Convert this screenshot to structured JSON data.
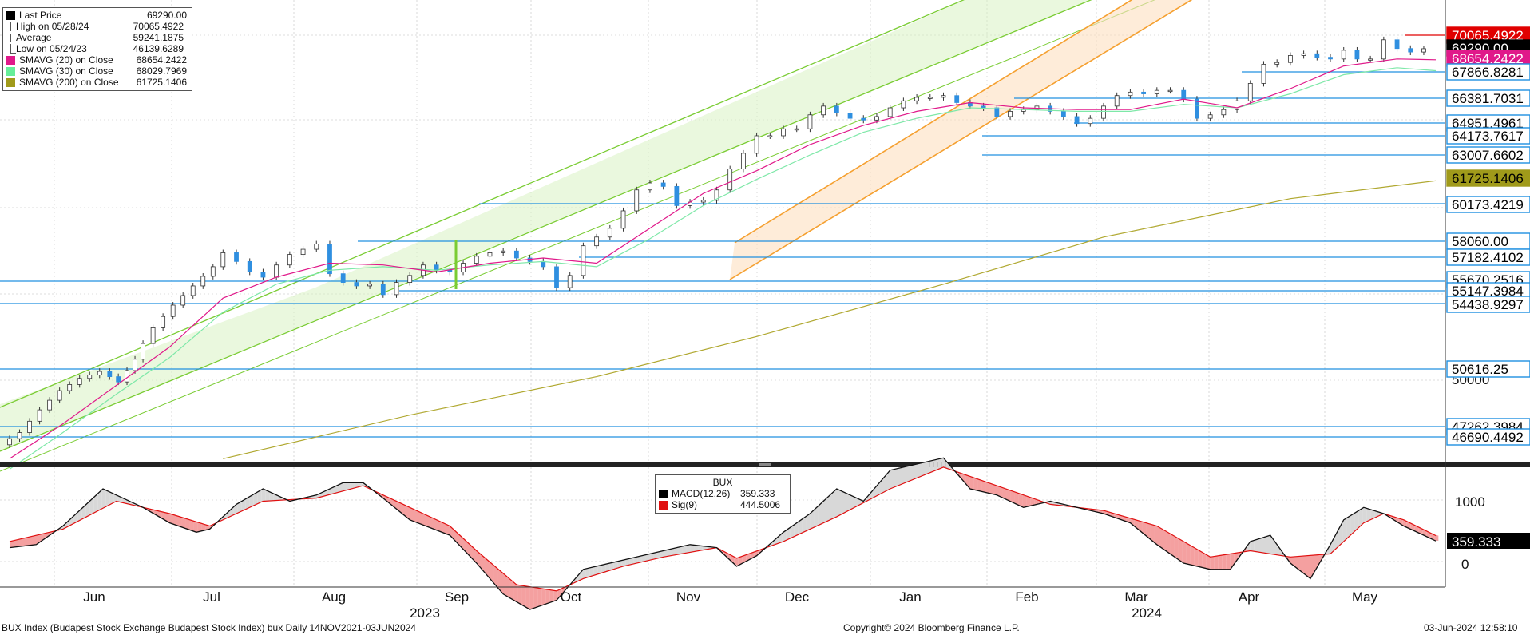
{
  "legend": [
    {
      "name": "Last Price",
      "value": "69290.00",
      "color": "#000000",
      "icon": "square"
    },
    {
      "name": "High on 05/28/24",
      "value": "70065.4922",
      "color": "#555555",
      "icon": "high-marker"
    },
    {
      "name": "Average",
      "value": "59241.1875",
      "color": "#555555",
      "icon": "average-marker"
    },
    {
      "name": "Low on 05/24/23",
      "value": "46139.6289",
      "color": "#555555",
      "icon": "low-marker"
    },
    {
      "name": "SMAVG (20)  on Close",
      "value": "68654.2422",
      "color": "#e0198a",
      "icon": "square"
    },
    {
      "name": "SMAVG (30)  on Close",
      "value": "68029.7969",
      "color": "#66ee99",
      "icon": "square"
    },
    {
      "name": "SMAVG (200)  on Close",
      "value": "61725.1406",
      "color": "#a09a1a",
      "icon": "square"
    }
  ],
  "macd_legend": {
    "title": "BUX",
    "rows": [
      {
        "name": "MACD(12,26)",
        "value": "359.333",
        "color": "#000000"
      },
      {
        "name": "Sig(9)",
        "value": "444.5006",
        "color": "#e01010"
      }
    ]
  },
  "footer": {
    "left": "BUX Index (Budapest Stock Exchange Budapest Stock Index) bux  Daily 14NOV2021-03JUN2024",
    "center": "Copyright© 2024 Bloomberg Finance L.P.",
    "right": "03-Jun-2024 12:58:10"
  },
  "chart_data": [
    {
      "type": "line",
      "title": "BUX Index",
      "x_months": [
        "Jun",
        "Jul",
        "Aug",
        "Sep",
        "Oct",
        "Nov",
        "Dec",
        "Jan",
        "Feb",
        "Mar",
        "Apr",
        "May"
      ],
      "year_labels": [
        "2023",
        "2024"
      ],
      "y_axis_labels": [
        "50000"
      ],
      "price_labels": [
        {
          "value": "70065.4922",
          "color": "#e00000"
        },
        {
          "value": "69290.00",
          "color": "#000000"
        },
        {
          "value": "68654.2422",
          "color": "#e0198a"
        },
        {
          "value": "67866.8281",
          "color": "#2090e0"
        },
        {
          "value": "66381.7031",
          "color": "#2090e0"
        },
        {
          "value": "64951.4961",
          "color": "#2090e0"
        },
        {
          "value": "64173.7617",
          "color": "#2090e0"
        },
        {
          "value": "63007.6602",
          "color": "#2090e0"
        },
        {
          "value": "61725.1406",
          "color": "#a09a1a"
        },
        {
          "value": "60173.4219",
          "color": "#2090e0"
        },
        {
          "value": "58060.00",
          "color": "#2090e0"
        },
        {
          "value": "57182.4102",
          "color": "#2090e0"
        },
        {
          "value": "55670.2516",
          "color": "#2090e0"
        },
        {
          "value": "55147.3984",
          "color": "#2090e0"
        },
        {
          "value": "54438.9297",
          "color": "#2090e0"
        },
        {
          "value": "50616.25",
          "color": "#2090e0"
        },
        {
          "value": "47262.3984",
          "color": "#2090e0"
        },
        {
          "value": "46690.4492",
          "color": "#2090e0"
        }
      ],
      "price_path": [
        [
          0,
          46600
        ],
        [
          15,
          47300
        ],
        [
          30,
          48600
        ],
        [
          45,
          49700
        ],
        [
          60,
          50400
        ],
        [
          75,
          50800
        ],
        [
          88,
          50200
        ],
        [
          100,
          51500
        ],
        [
          115,
          53300
        ],
        [
          130,
          54600
        ],
        [
          145,
          55700
        ],
        [
          160,
          56800
        ],
        [
          170,
          57600
        ],
        [
          180,
          57100
        ],
        [
          190,
          56500
        ],
        [
          200,
          56200
        ],
        [
          210,
          56900
        ],
        [
          220,
          57500
        ],
        [
          230,
          57800
        ],
        [
          240,
          58100
        ],
        [
          250,
          56400
        ],
        [
          260,
          55900
        ],
        [
          270,
          55700
        ],
        [
          280,
          55800
        ],
        [
          290,
          55200
        ],
        [
          300,
          55900
        ],
        [
          310,
          56300
        ],
        [
          320,
          56900
        ],
        [
          330,
          56600
        ],
        [
          340,
          56500
        ],
        [
          350,
          57000
        ],
        [
          360,
          57400
        ],
        [
          370,
          57600
        ],
        [
          380,
          57700
        ],
        [
          390,
          57300
        ],
        [
          400,
          57100
        ],
        [
          410,
          56800
        ],
        [
          420,
          55600
        ],
        [
          430,
          56300
        ],
        [
          440,
          58000
        ],
        [
          450,
          58500
        ],
        [
          460,
          59000
        ],
        [
          470,
          60000
        ],
        [
          480,
          61200
        ],
        [
          490,
          61600
        ],
        [
          500,
          61400
        ],
        [
          510,
          60300
        ],
        [
          520,
          60500
        ],
        [
          530,
          60600
        ],
        [
          540,
          61200
        ],
        [
          550,
          62400
        ],
        [
          560,
          63300
        ],
        [
          570,
          64300
        ],
        [
          580,
          64300
        ],
        [
          590,
          64700
        ],
        [
          600,
          64700
        ],
        [
          610,
          65500
        ],
        [
          620,
          66000
        ],
        [
          630,
          65600
        ],
        [
          640,
          65300
        ],
        [
          650,
          65200
        ],
        [
          660,
          65400
        ],
        [
          670,
          65900
        ],
        [
          680,
          66300
        ],
        [
          690,
          66500
        ],
        [
          700,
          66500
        ],
        [
          710,
          66600
        ],
        [
          720,
          66200
        ],
        [
          730,
          66000
        ],
        [
          740,
          65900
        ],
        [
          750,
          65400
        ],
        [
          760,
          65700
        ],
        [
          770,
          65800
        ],
        [
          780,
          66000
        ],
        [
          790,
          65700
        ],
        [
          800,
          65400
        ],
        [
          810,
          65000
        ],
        [
          820,
          65300
        ],
        [
          830,
          66000
        ],
        [
          840,
          66600
        ],
        [
          850,
          66800
        ],
        [
          860,
          66700
        ],
        [
          870,
          66900
        ],
        [
          880,
          66900
        ],
        [
          890,
          66400
        ],
        [
          900,
          65300
        ],
        [
          910,
          65500
        ],
        [
          920,
          65800
        ],
        [
          930,
          66300
        ],
        [
          940,
          67300
        ],
        [
          950,
          68400
        ],
        [
          960,
          68500
        ],
        [
          970,
          68900
        ],
        [
          980,
          69000
        ],
        [
          990,
          68800
        ],
        [
          1000,
          68700
        ],
        [
          1010,
          69200
        ],
        [
          1020,
          68700
        ],
        [
          1030,
          68700
        ],
        [
          1040,
          69800
        ],
        [
          1050,
          69300
        ],
        [
          1060,
          69100
        ],
        [
          1069,
          69290
        ]
      ],
      "sma20_path": [
        [
          0,
          45800
        ],
        [
          40,
          47800
        ],
        [
          80,
          50000
        ],
        [
          120,
          52200
        ],
        [
          160,
          55000
        ],
        [
          200,
          56200
        ],
        [
          240,
          57000
        ],
        [
          280,
          56900
        ],
        [
          320,
          56500
        ],
        [
          360,
          57000
        ],
        [
          400,
          57300
        ],
        [
          440,
          57000
        ],
        [
          480,
          59000
        ],
        [
          520,
          61000
        ],
        [
          560,
          62300
        ],
        [
          600,
          63800
        ],
        [
          640,
          64900
        ],
        [
          680,
          65700
        ],
        [
          720,
          66200
        ],
        [
          760,
          65900
        ],
        [
          800,
          65800
        ],
        [
          840,
          65800
        ],
        [
          880,
          66400
        ],
        [
          920,
          65900
        ],
        [
          960,
          67000
        ],
        [
          1000,
          68300
        ],
        [
          1040,
          68700
        ],
        [
          1069,
          68654
        ]
      ],
      "sma30_path": [
        [
          0,
          45200
        ],
        [
          40,
          47300
        ],
        [
          80,
          49500
        ],
        [
          120,
          51600
        ],
        [
          160,
          54200
        ],
        [
          200,
          55800
        ],
        [
          240,
          56600
        ],
        [
          280,
          56800
        ],
        [
          320,
          56600
        ],
        [
          360,
          56900
        ],
        [
          400,
          57100
        ],
        [
          440,
          56800
        ],
        [
          480,
          58400
        ],
        [
          520,
          60300
        ],
        [
          560,
          61800
        ],
        [
          600,
          63200
        ],
        [
          640,
          64500
        ],
        [
          680,
          65300
        ],
        [
          720,
          65900
        ],
        [
          760,
          65800
        ],
        [
          800,
          65700
        ],
        [
          840,
          65700
        ],
        [
          880,
          66100
        ],
        [
          920,
          65900
        ],
        [
          960,
          66700
        ],
        [
          1000,
          67800
        ],
        [
          1040,
          68200
        ],
        [
          1069,
          68030
        ]
      ],
      "sma200_path": [
        [
          160,
          45800
        ],
        [
          300,
          48300
        ],
        [
          440,
          50500
        ],
        [
          560,
          52800
        ],
        [
          700,
          55800
        ],
        [
          820,
          58500
        ],
        [
          960,
          60700
        ],
        [
          1069,
          61725
        ]
      ],
      "macd": [
        [
          0,
          250
        ],
        [
          20,
          300
        ],
        [
          40,
          600
        ],
        [
          60,
          1000
        ],
        [
          70,
          1200
        ],
        [
          80,
          1100
        ],
        [
          100,
          900
        ],
        [
          120,
          650
        ],
        [
          140,
          500
        ],
        [
          150,
          550
        ],
        [
          170,
          950
        ],
        [
          190,
          1200
        ],
        [
          210,
          1000
        ],
        [
          230,
          1100
        ],
        [
          250,
          1300
        ],
        [
          265,
          1300
        ],
        [
          280,
          1050
        ],
        [
          300,
          700
        ],
        [
          330,
          450
        ],
        [
          350,
          0
        ],
        [
          370,
          -500
        ],
        [
          390,
          -750
        ],
        [
          410,
          -600
        ],
        [
          430,
          -100
        ],
        [
          460,
          50
        ],
        [
          490,
          200
        ],
        [
          510,
          300
        ],
        [
          530,
          250
        ],
        [
          545,
          -50
        ],
        [
          560,
          120
        ],
        [
          580,
          500
        ],
        [
          600,
          800
        ],
        [
          620,
          1200
        ],
        [
          640,
          1000
        ],
        [
          660,
          1500
        ],
        [
          680,
          1600
        ],
        [
          700,
          1700
        ],
        [
          720,
          1200
        ],
        [
          740,
          1100
        ],
        [
          760,
          900
        ],
        [
          780,
          1000
        ],
        [
          800,
          900
        ],
        [
          820,
          800
        ],
        [
          840,
          650
        ],
        [
          860,
          300
        ],
        [
          880,
          0
        ],
        [
          900,
          -100
        ],
        [
          915,
          -100
        ],
        [
          930,
          350
        ],
        [
          945,
          450
        ],
        [
          960,
          0
        ],
        [
          975,
          -250
        ],
        [
          990,
          300
        ],
        [
          1000,
          700
        ],
        [
          1015,
          900
        ],
        [
          1030,
          800
        ],
        [
          1045,
          600
        ],
        [
          1060,
          450
        ],
        [
          1069,
          359
        ]
      ],
      "signal": [
        [
          0,
          350
        ],
        [
          40,
          550
        ],
        [
          80,
          1000
        ],
        [
          120,
          800
        ],
        [
          150,
          600
        ],
        [
          190,
          1000
        ],
        [
          230,
          1050
        ],
        [
          265,
          1250
        ],
        [
          300,
          900
        ],
        [
          330,
          600
        ],
        [
          350,
          200
        ],
        [
          380,
          -350
        ],
        [
          410,
          -450
        ],
        [
          430,
          -250
        ],
        [
          460,
          -50
        ],
        [
          490,
          100
        ],
        [
          530,
          250
        ],
        [
          545,
          80
        ],
        [
          580,
          350
        ],
        [
          620,
          750
        ],
        [
          660,
          1200
        ],
        [
          700,
          1550
        ],
        [
          740,
          1250
        ],
        [
          780,
          950
        ],
        [
          820,
          850
        ],
        [
          860,
          600
        ],
        [
          900,
          100
        ],
        [
          930,
          200
        ],
        [
          960,
          100
        ],
        [
          990,
          150
        ],
        [
          1015,
          650
        ],
        [
          1030,
          800
        ],
        [
          1045,
          700
        ],
        [
          1069,
          444.5
        ]
      ]
    }
  ]
}
